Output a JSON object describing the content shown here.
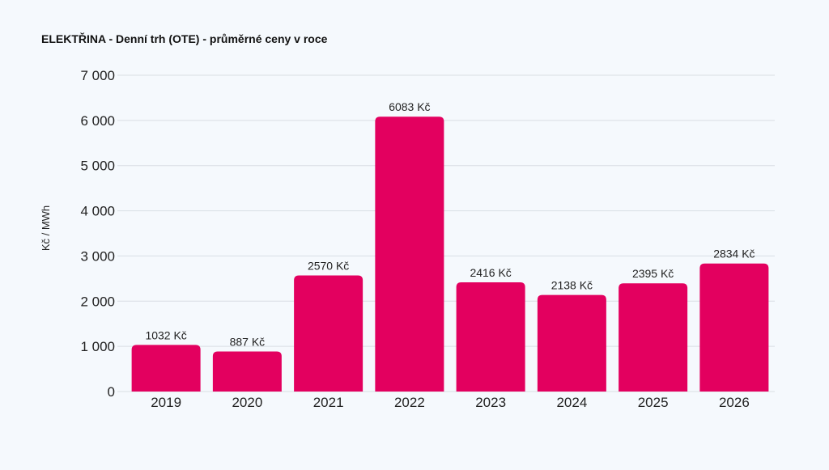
{
  "chart_data": {
    "type": "bar",
    "title": "ELEKTŘINA - Denní trh (OTE) - průměrné ceny v roce",
    "xlabel": "",
    "ylabel": "Kč / MWh",
    "categories": [
      "2019",
      "2020",
      "2021",
      "2022",
      "2023",
      "2024",
      "2025",
      "2026"
    ],
    "values": [
      1032,
      887,
      2570,
      6083,
      2416,
      2138,
      2395,
      2834
    ],
    "data_labels": [
      "1032 Kč",
      "887 Kč",
      "2570 Kč",
      "6083 Kč",
      "2416 Kč",
      "2138 Kč",
      "2395 Kč",
      "2834 Kč"
    ],
    "ylim": [
      0,
      7000
    ],
    "yticks": [
      0,
      1000,
      2000,
      3000,
      4000,
      5000,
      6000,
      7000
    ],
    "ytick_labels": [
      "0",
      "1 000",
      "2 000",
      "3 000",
      "4 000",
      "5 000",
      "6 000",
      "7 000"
    ],
    "grid": true,
    "legend": "none",
    "colors": {
      "bar": "#e3005f",
      "grid": "#d9dee4",
      "text": "#222222",
      "background": "#f5f9fd"
    }
  }
}
